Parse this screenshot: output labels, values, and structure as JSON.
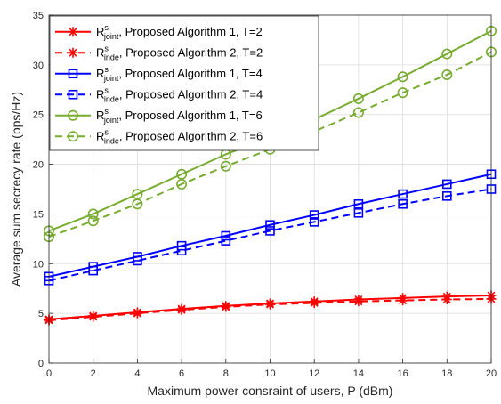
{
  "chart_data": {
    "type": "line",
    "title": "",
    "xlabel": "Maximum power consraint of users, P (dBm)",
    "ylabel": "Average sum secrecy rate (bps/Hz)",
    "xlim": [
      0,
      20
    ],
    "ylim": [
      0,
      35
    ],
    "xticks": [
      "0",
      "2",
      "4",
      "6",
      "8",
      "10",
      "12",
      "14",
      "16",
      "18",
      "20"
    ],
    "yticks": [
      "0",
      "5",
      "10",
      "15",
      "20",
      "25",
      "30",
      "35"
    ],
    "grid": true,
    "legend_position": "top-left",
    "x": [
      0,
      2,
      4,
      6,
      8,
      10,
      12,
      14,
      16,
      18,
      20
    ],
    "series": [
      {
        "legend_main": "R",
        "legend_sup": "s",
        "legend_sub": "joint",
        "legend_rest": ", Proposed Algorithm 1, T=2",
        "color": "#ff0000",
        "dash": "solid",
        "marker": "asterisk",
        "values": [
          4.4,
          4.75,
          5.1,
          5.45,
          5.75,
          6.0,
          6.2,
          6.4,
          6.55,
          6.7,
          6.8
        ]
      },
      {
        "legend_main": "R",
        "legend_sup": "s",
        "legend_sub": "inde",
        "legend_rest": ", Proposed Algorithm 2, T=2",
        "color": "#ff0000",
        "dash": "dashed",
        "marker": "asterisk",
        "values": [
          4.3,
          4.65,
          5.0,
          5.35,
          5.65,
          5.9,
          6.05,
          6.2,
          6.3,
          6.4,
          6.45
        ]
      },
      {
        "legend_main": "R",
        "legend_sup": "s",
        "legend_sub": "joint",
        "legend_rest": ", Proposed Algorithm 1, T=4",
        "color": "#0000ff",
        "dash": "solid",
        "marker": "square",
        "values": [
          8.7,
          9.7,
          10.7,
          11.8,
          12.8,
          13.9,
          14.9,
          16.0,
          17.0,
          18.0,
          19.0
        ]
      },
      {
        "legend_main": "R",
        "legend_sup": "s",
        "legend_sub": "inde",
        "legend_rest": ", Proposed Algorithm 2, T=4",
        "color": "#0000ff",
        "dash": "dashed",
        "marker": "square",
        "values": [
          8.3,
          9.3,
          10.3,
          11.3,
          12.3,
          13.3,
          14.2,
          15.1,
          16.0,
          16.8,
          17.5
        ]
      },
      {
        "legend_main": "R",
        "legend_sup": "s",
        "legend_sub": "joint",
        "legend_rest": ", Proposed Algorithm 1, T=6",
        "color": "#77ac30",
        "dash": "solid",
        "marker": "circle",
        "values": [
          13.3,
          15.0,
          17.0,
          19.0,
          21.0,
          22.7,
          24.5,
          26.6,
          28.8,
          31.1,
          33.4
        ]
      },
      {
        "legend_main": "R",
        "legend_sup": "s",
        "legend_sub": "inde",
        "legend_rest": ", Proposed Algorithm 2, T=6",
        "color": "#77ac30",
        "dash": "dashed",
        "marker": "circle",
        "values": [
          12.7,
          14.3,
          16.0,
          18.0,
          19.8,
          21.5,
          23.3,
          25.2,
          27.2,
          29.0,
          31.3
        ]
      }
    ]
  }
}
